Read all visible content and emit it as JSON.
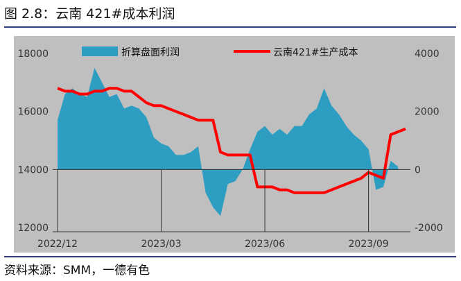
{
  "figure": {
    "title": "图 2.8：云南 421#成本利润",
    "source": "资料来源：SMM，一德有色"
  },
  "colors": {
    "area": "#2d9dc2",
    "line": "#ff0000",
    "plot_bg": "#bfbfbf",
    "rule": "#2e3f7a"
  },
  "chart_data": {
    "type": "area+line",
    "title": "云南 421#成本利润",
    "x_tick_labels": [
      "2022/12",
      "2023/03",
      "2023/06",
      "2023/09"
    ],
    "x_tick_index": [
      0,
      14,
      28,
      42
    ],
    "y_left": {
      "min": 12000,
      "max": 18000,
      "ticks": [
        12000,
        14000,
        16000,
        18000
      ]
    },
    "y_right": {
      "min": -2000,
      "max": 4000,
      "ticks": [
        -2000,
        0,
        2000,
        4000
      ]
    },
    "legend": {
      "position": "top",
      "entries": [
        "折算盘面利润",
        "云南421#生产成本"
      ]
    },
    "series": [
      {
        "name": "折算盘面利润",
        "type": "area",
        "axis": "right",
        "values": [
          1700,
          2600,
          2800,
          2600,
          2500,
          3500,
          3000,
          2500,
          2600,
          2100,
          2200,
          2100,
          1800,
          1100,
          900,
          800,
          500,
          500,
          600,
          800,
          -800,
          -1300,
          -1600,
          -500,
          -400,
          0,
          700,
          1300,
          1500,
          1200,
          1400,
          1200,
          1500,
          1500,
          1900,
          2100,
          2800,
          2200,
          1900,
          1500,
          1200,
          1000,
          700,
          -700,
          -600,
          300,
          100
        ]
      },
      {
        "name": "云南421#生产成本",
        "type": "line",
        "axis": "left",
        "values": [
          16800,
          16700,
          16700,
          16600,
          16600,
          16700,
          16700,
          16800,
          16800,
          16700,
          16700,
          16500,
          16300,
          16200,
          16200,
          16100,
          16000,
          15900,
          15800,
          15700,
          15700,
          15700,
          14600,
          14500,
          14500,
          14500,
          14500,
          13400,
          13400,
          13400,
          13300,
          13300,
          13200,
          13200,
          13200,
          13200,
          13200,
          13300,
          13400,
          13500,
          13600,
          13700,
          13900,
          13800,
          13700,
          15200,
          15300,
          15400
        ]
      }
    ],
    "grid": false
  }
}
